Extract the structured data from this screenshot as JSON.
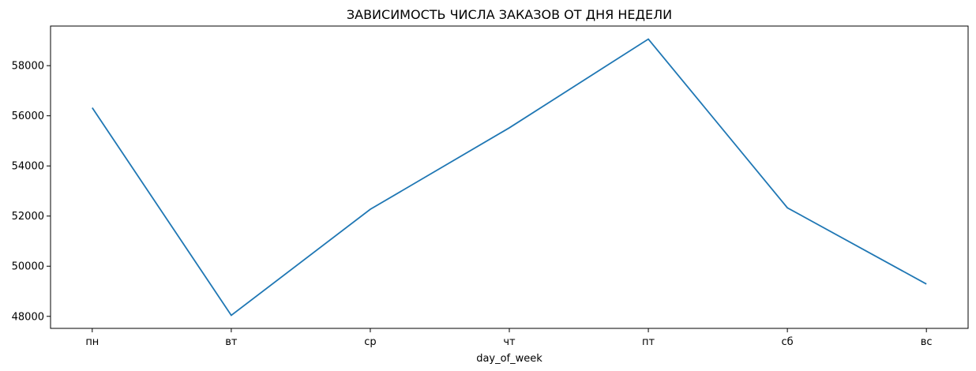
{
  "chart_data": {
    "type": "line",
    "title": "ЗАВИСИМОСТЬ ЧИСЛА ЗАКАЗОВ ОТ ДНЯ НЕДЕЛИ",
    "xlabel": "day_of_week",
    "ylabel": "",
    "categories": [
      "пн",
      "вт",
      "ср",
      "чт",
      "пт",
      "сб",
      "вс"
    ],
    "series": [
      {
        "values": [
          56320,
          48040,
          52270,
          55520,
          59060,
          52330,
          49290
        ]
      }
    ],
    "ylim": [
      47520,
      59580
    ],
    "yticks": [
      48000,
      50000,
      52000,
      54000,
      56000,
      58000
    ],
    "line_color": "#1f77b4",
    "grid": false,
    "legend": "none"
  }
}
